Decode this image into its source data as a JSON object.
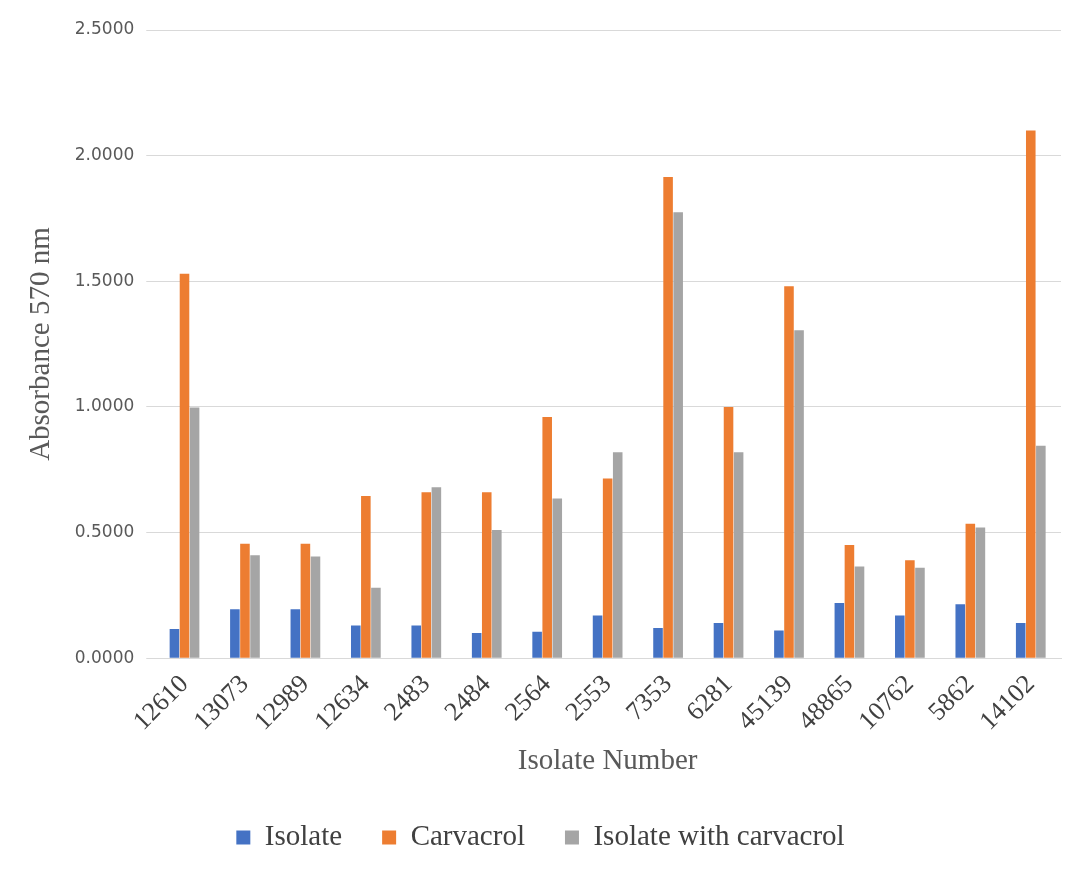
{
  "chart_data": {
    "type": "bar",
    "xlabel": "Isolate Number",
    "ylabel": "Absorbance 570 nm",
    "categories": [
      "12610",
      "13073",
      "12989",
      "12634",
      "2483",
      "2484",
      "2564",
      "2553",
      "7353",
      "6281",
      "45139",
      "48865",
      "10762",
      "5862",
      "14102"
    ],
    "series": [
      {
        "name": "Isolate",
        "color": "#4472c4",
        "values": [
          0.116,
          0.195,
          0.195,
          0.13,
          0.13,
          0.1,
          0.105,
          0.17,
          0.12,
          0.14,
          0.11,
          0.22,
          0.17,
          0.215,
          0.14
        ]
      },
      {
        "name": "Carvacrol",
        "color": "#ed7d31",
        "values": [
          1.53,
          0.455,
          0.455,
          0.645,
          0.66,
          0.66,
          0.96,
          0.715,
          1.915,
          1.0,
          1.48,
          0.45,
          0.39,
          0.535,
          2.1
        ]
      },
      {
        "name": "Isolate with carvacrol",
        "color": "#a5a5a5",
        "values": [
          0.998,
          0.41,
          0.405,
          0.28,
          0.68,
          0.51,
          0.635,
          0.82,
          1.775,
          0.82,
          1.305,
          0.365,
          0.36,
          0.52,
          0.845
        ]
      }
    ],
    "ylim": [
      0,
      2.5
    ],
    "yticks": [
      {
        "value": 0,
        "label": "0.0000"
      },
      {
        "value": 0.5,
        "label": "0.5000"
      },
      {
        "value": 1,
        "label": "1.0000"
      },
      {
        "value": 1.5,
        "label": "1.5000"
      },
      {
        "value": 2,
        "label": "2.0000"
      },
      {
        "value": 2.5,
        "label": "2.5000"
      }
    ],
    "grid": "y",
    "legend": "bottom"
  }
}
